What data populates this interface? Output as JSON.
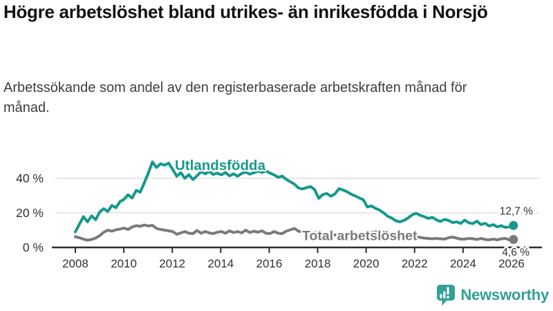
{
  "header": {
    "title": "Högre arbetslöshet bland utrikes- än inrikesfödda i Norsjö",
    "subtitle": "Arbetssökande som andel av den registerbaserade arbetskraften månad för månad."
  },
  "chart_data": {
    "type": "line",
    "title": "Högre arbetslöshet bland utrikes- än inrikesfödda i Norsjö",
    "subtitle": "Arbetssökande som andel av den registerbaserade arbetskraften månad för månad.",
    "unit": "%",
    "x_start": 2008,
    "x_step": 0.1674,
    "x_ticks": [
      2008,
      2010,
      2012,
      2014,
      2016,
      2018,
      2020,
      2022,
      2024,
      2026
    ],
    "xlim": [
      2007.1,
      2027.2
    ],
    "ylim": [
      0,
      52
    ],
    "grid": "horizontal",
    "y_ticks": [
      {
        "value": 0,
        "label": "0 %"
      },
      {
        "value": 20,
        "label": "20 %"
      },
      {
        "value": 40,
        "label": "40 %"
      }
    ],
    "series": [
      {
        "name": "Utlandsfödda",
        "color": "#14998c",
        "end_value": 12.7,
        "end_label": "12,7 %",
        "values": [
          9.0,
          13.5,
          17.8,
          14.8,
          18.3,
          16.0,
          20.5,
          22.4,
          20.8,
          24.3,
          23.0,
          26.5,
          27.8,
          30.5,
          28.6,
          33.0,
          32.0,
          37.5,
          43.0,
          49.5,
          46.3,
          48.4,
          47.6,
          48.8,
          45.2,
          41.2,
          43.3,
          40.0,
          42.1,
          39.3,
          41.5,
          43.8,
          42.6,
          44.0,
          42.2,
          43.0,
          42.0,
          43.4,
          41.4,
          42.6,
          41.2,
          42.8,
          43.6,
          42.4,
          43.2,
          44.2,
          43.4,
          44.3,
          43.0,
          42.0,
          40.6,
          41.3,
          39.4,
          38.0,
          36.6,
          34.4,
          33.8,
          34.6,
          35.2,
          33.4,
          28.4,
          30.6,
          31.2,
          29.6,
          31.0,
          34.0,
          33.2,
          32.2,
          30.8,
          29.8,
          28.6,
          27.6,
          23.4,
          24.0,
          22.6,
          21.6,
          20.0,
          18.0,
          17.0,
          15.4,
          14.8,
          15.6,
          17.0,
          18.8,
          19.8,
          18.6,
          17.8,
          16.8,
          17.4,
          16.0,
          15.0,
          16.2,
          15.6,
          14.4,
          14.8,
          13.9,
          15.8,
          14.2,
          13.8,
          15.2,
          13.2,
          14.0,
          12.4,
          13.2,
          11.9,
          12.6,
          11.6,
          11.9,
          12.7
        ]
      },
      {
        "name": "Total arbetslöshet",
        "color": "#7a7a7a",
        "end_value": 4.6,
        "end_label": "4,6 %",
        "values": [
          6.2,
          5.6,
          4.8,
          4.2,
          4.6,
          5.4,
          6.8,
          8.8,
          10.0,
          9.4,
          10.2,
          10.6,
          11.2,
          10.4,
          11.8,
          12.6,
          12.2,
          13.0,
          12.4,
          12.8,
          11.0,
          10.4,
          10.0,
          9.6,
          9.2,
          7.6,
          8.4,
          9.2,
          8.2,
          8.0,
          9.8,
          8.2,
          9.2,
          8.4,
          8.0,
          8.8,
          9.2,
          8.2,
          9.6,
          8.6,
          9.2,
          8.4,
          10.0,
          8.6,
          9.4,
          8.8,
          9.6,
          8.2,
          8.0,
          9.2,
          8.2,
          8.0,
          9.4,
          10.2,
          11.0,
          9.4,
          9.0,
          8.6,
          8.2,
          8.6,
          8.4,
          7.8,
          7.4,
          7.6,
          7.2,
          7.0,
          7.4,
          7.0,
          6.8,
          7.2,
          6.8,
          7.0,
          7.6,
          8.6,
          9.0,
          8.8,
          8.4,
          8.0,
          7.8,
          7.4,
          7.0,
          6.6,
          6.4,
          6.2,
          6.0,
          5.8,
          5.4,
          5.2,
          5.0,
          5.2,
          5.0,
          4.8,
          5.6,
          6.0,
          5.4,
          4.8,
          4.8,
          5.2,
          5.0,
          4.6,
          5.2,
          4.6,
          4.4,
          4.8,
          4.4,
          5.0,
          5.2,
          4.4,
          4.6
        ]
      }
    ]
  },
  "footer": {
    "brand": "Newsworthy"
  },
  "colors": {
    "accent_teal": "#14998c",
    "series_gray": "#7a7a7a",
    "logo_teal": "#31a096",
    "grid": "#d0d0d0",
    "axis": "#2e2e2e",
    "title": "#121212",
    "subtitle": "#3d3d3d"
  }
}
